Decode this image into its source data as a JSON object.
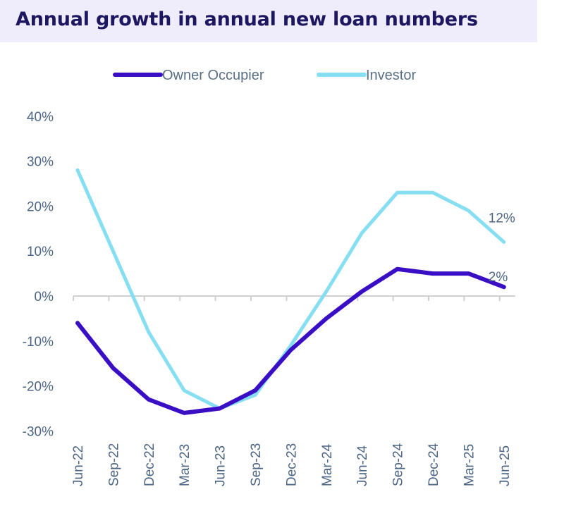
{
  "chart_data": {
    "type": "line",
    "title": "Annual growth in annual new loan numbers",
    "xlabel": "",
    "ylabel": "",
    "categories": [
      "Jun-22",
      "Sep-22",
      "Dec-22",
      "Mar-23",
      "Jun-23",
      "Sep-23",
      "Dec-23",
      "Mar-24",
      "Jun-24",
      "Sep-24",
      "Dec-24",
      "Mar-25",
      "Jun-25"
    ],
    "yticks": [
      "40%",
      "30%",
      "20%",
      "10%",
      "0%",
      "-10%",
      "-20%",
      "-30%"
    ],
    "ytick_values": [
      40,
      30,
      20,
      10,
      0,
      -10,
      -20,
      -30
    ],
    "ylim": [
      -30,
      40
    ],
    "grid": false,
    "legend_position": "top-center",
    "series": [
      {
        "name": "Owner Occupier",
        "color": "#3a0ec4",
        "values": [
          -6,
          -16,
          -23,
          -26,
          -25,
          -21,
          -12,
          -5,
          1,
          6,
          5,
          5,
          2
        ],
        "end_label": "2%"
      },
      {
        "name": "Investor",
        "color": "#86def2",
        "values": [
          28,
          10,
          -8,
          -21,
          -25,
          -22,
          -11,
          1,
          14,
          23,
          23,
          19,
          12
        ],
        "end_label": "12%"
      }
    ]
  }
}
